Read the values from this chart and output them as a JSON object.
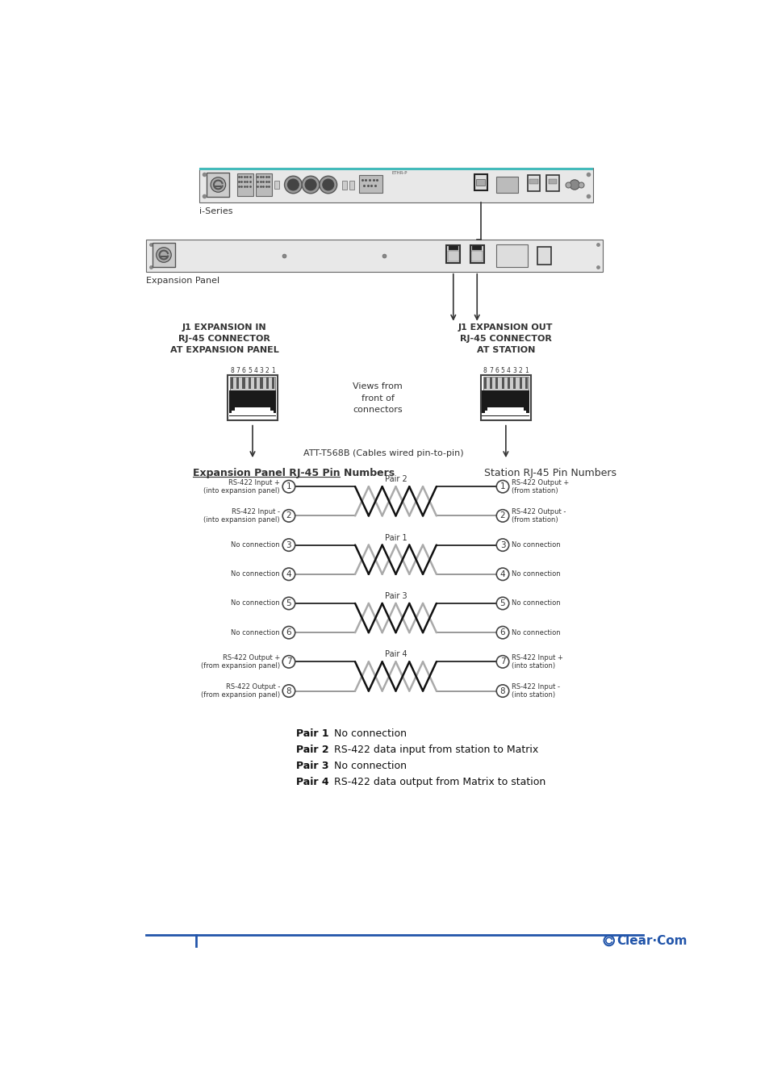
{
  "bg_color": "#ffffff",
  "iseries_label": "i-Series",
  "expansion_label": "Expansion Panel",
  "left_connector_title": "J1 EXPANSION IN\nRJ-45 CONNECTOR\nAT EXPANSION PANEL",
  "right_connector_title": "J1 EXPANSION OUT\nRJ-45 CONNECTOR\nAT STATION",
  "views_text": "Views from\nfront of\nconnectors",
  "cable_label": "ATT-T568B (Cables wired pin-to-pin)",
  "left_section_title": "Expansion Panel RJ-45 Pin Numbers",
  "right_section_title": "Station RJ-45 Pin Numbers",
  "left_pins": [
    {
      "num": 1,
      "label": "RS-422 Input +\n(into expansion panel)"
    },
    {
      "num": 2,
      "label": "RS-422 Input -\n(into expansion panel)"
    },
    {
      "num": 3,
      "label": "No connection"
    },
    {
      "num": 4,
      "label": "No connection"
    },
    {
      "num": 5,
      "label": "No connection"
    },
    {
      "num": 6,
      "label": "No connection"
    },
    {
      "num": 7,
      "label": "RS-422 Output +\n(from expansion panel)"
    },
    {
      "num": 8,
      "label": "RS-422 Output -\n(from expansion panel)"
    }
  ],
  "right_pins": [
    {
      "num": 1,
      "label": "RS-422 Output +\n(from station)"
    },
    {
      "num": 2,
      "label": "RS-422 Output -\n(from station)"
    },
    {
      "num": 3,
      "label": "No connection"
    },
    {
      "num": 4,
      "label": "No connection"
    },
    {
      "num": 5,
      "label": "No connection"
    },
    {
      "num": 6,
      "label": "No connection"
    },
    {
      "num": 7,
      "label": "RS-422 Input +\n(into station)"
    },
    {
      "num": 8,
      "label": "RS-422 Input -\n(into station)"
    }
  ],
  "pair_legend": [
    {
      "pair": "Pair 1",
      "desc": "No connection"
    },
    {
      "pair": "Pair 2",
      "desc": "RS-422 data input from station to Matrix"
    },
    {
      "pair": "Pair 3",
      "desc": "No connection"
    },
    {
      "pair": "Pair 4",
      "desc": "RS-422 data output from Matrix to station"
    }
  ],
  "footer_line_color": "#2255aa",
  "clearcom_text_color": "#2255aa"
}
